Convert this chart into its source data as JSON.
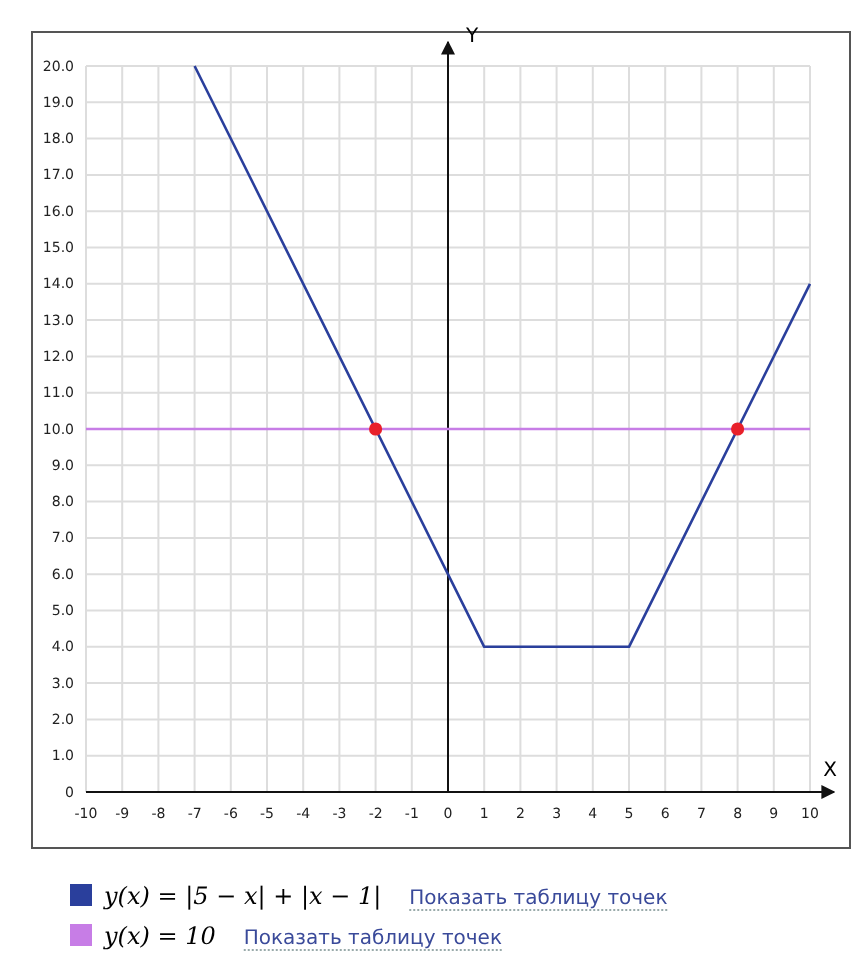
{
  "chart_data": {
    "type": "line",
    "xlabel": "X",
    "ylabel": "Y",
    "xlim": [
      -10,
      10
    ],
    "xticks": [
      -10,
      -9,
      -8,
      -7,
      -6,
      -5,
      -4,
      -3,
      -2,
      -1,
      0,
      1,
      2,
      3,
      4,
      5,
      6,
      7,
      8,
      9,
      10
    ],
    "ylim": [
      0,
      20
    ],
    "yticks": [
      0,
      {
        "value": 1,
        "label": "1.0"
      },
      {
        "value": 2,
        "label": "2.0"
      },
      {
        "value": 3,
        "label": "3.0"
      },
      {
        "value": 4,
        "label": "4.0"
      },
      {
        "value": 5,
        "label": "5.0"
      },
      {
        "value": 6,
        "label": "6.0"
      },
      {
        "value": 7,
        "label": "7.0"
      },
      {
        "value": 8,
        "label": "8.0"
      },
      {
        "value": 9,
        "label": "9.0"
      },
      {
        "value": 10,
        "label": "10.0"
      },
      {
        "value": 11,
        "label": "11.0"
      },
      {
        "value": 12,
        "label": "12.0"
      },
      {
        "value": 13,
        "label": "13.0"
      },
      {
        "value": 14,
        "label": "14.0"
      },
      {
        "value": 15,
        "label": "15.0"
      },
      {
        "value": 16,
        "label": "16.0"
      },
      {
        "value": 17,
        "label": "17.0"
      },
      {
        "value": 18,
        "label": "18.0"
      },
      {
        "value": 19,
        "label": "19.0"
      },
      {
        "value": 20,
        "label": "20.0"
      }
    ],
    "grid": true,
    "legend": "bottom",
    "marker": "none",
    "line_style": "solid",
    "series": [
      {
        "name": "y(x) = |5 − x| + |x − 1|",
        "color": "#2a3f9c",
        "x": [
          -7,
          1,
          5,
          10
        ],
        "values": [
          20,
          4,
          4,
          14
        ]
      },
      {
        "name": "y(x) = 10",
        "color": "#c77de6",
        "x": [
          -10,
          10
        ],
        "values": [
          10,
          10
        ]
      },
      {
        "type": "scatter",
        "marker": "circle",
        "color": "#e8202a",
        "x": [
          -2,
          8
        ],
        "values": [
          10,
          10
        ]
      }
    ],
    "annotations": [
      "Показать таблицу точек",
      "Показать таблицу точек"
    ]
  }
}
